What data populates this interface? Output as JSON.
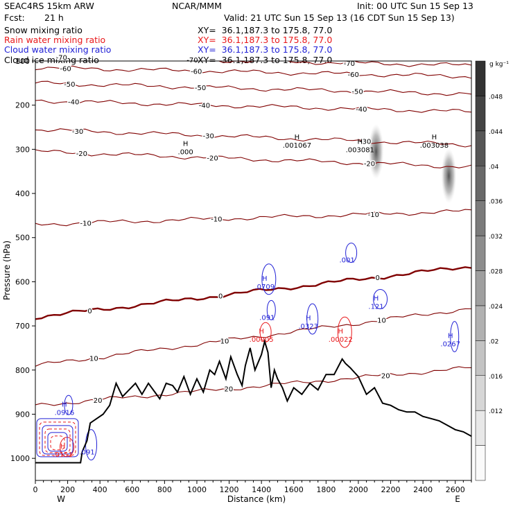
{
  "header": {
    "model": "SEAC4RS 15km ARW",
    "org": "NCAR/MMM",
    "init": "Init: 00 UTC Sun 15 Sep 13",
    "fcst_label": "Fcst:",
    "fcst_value": "21 h",
    "valid": "Valid: 21 UTC Sun 15 Sep 13 (16 CDT Sun 15 Sep 13)"
  },
  "fields": [
    {
      "name": "Snow mixing ratio",
      "xy": "XY=  36.1,187.3 to 175.8, 77.0",
      "color": "#000000"
    },
    {
      "name": "Rain water mixing ratio",
      "xy": "XY=  36.1,187.3 to 175.8, 77.0",
      "color": "#e8171a"
    },
    {
      "name": "Cloud water mixing ratio",
      "xy": "XY=  36.1,187.3 to 175.8, 77.0",
      "color": "#2121d6"
    },
    {
      "name": "Cloud ice mixing ratio",
      "xy": "XY=  36.1,187.3 to 175.8, 77.0",
      "color": "#000000"
    }
  ],
  "chart_data": {
    "type": "cross-section",
    "xlabel": "Distance (km)",
    "ylabel": "Pressure (hPa)",
    "xlim": [
      0,
      2700
    ],
    "ylim": [
      1050,
      100
    ],
    "x_ticks": [
      0,
      200,
      400,
      600,
      800,
      1000,
      1200,
      1400,
      1600,
      1800,
      2000,
      2200,
      2400,
      2600
    ],
    "y_ticks": [
      100,
      200,
      300,
      400,
      500,
      600,
      700,
      800,
      900,
      1000
    ],
    "x_end_labels": {
      "left": "W",
      "right": "E"
    },
    "colorbar": {
      "unit": "g kg⁻¹",
      "ticks": [
        ".012",
        ".016",
        ".02",
        ".024",
        ".028",
        ".032",
        ".036",
        ".04",
        ".044",
        ".048"
      ],
      "tick_values": [
        0.012,
        0.016,
        0.02,
        0.024,
        0.028,
        0.032,
        0.036,
        0.04,
        0.044,
        0.048
      ]
    },
    "temperature_contours": [
      {
        "level": -70,
        "p_left": 90,
        "p_right": 110,
        "label": "-70"
      },
      {
        "level": -60,
        "p_left": 115,
        "p_right": 135,
        "label": "-60"
      },
      {
        "level": -50,
        "p_left": 150,
        "p_right": 175,
        "label": "-50"
      },
      {
        "level": -40,
        "p_left": 190,
        "p_right": 215,
        "label": "-40"
      },
      {
        "level": -30,
        "p_left": 255,
        "p_right": 290,
        "label": "-30"
      },
      {
        "level": -20,
        "p_left": 305,
        "p_right": 340,
        "label": "-20"
      },
      {
        "level": -10,
        "p_left": 470,
        "p_right": 440,
        "label": "-10"
      },
      {
        "level": 0,
        "p_left": 680,
        "p_right": 565,
        "label": "0"
      },
      {
        "level": 10,
        "p_left": 790,
        "p_right": 660,
        "label": "10"
      },
      {
        "level": 20,
        "p_left": 880,
        "p_right": 795,
        "label": "20"
      }
    ],
    "terrain": {
      "x": [
        0,
        280,
        290,
        320,
        340,
        380,
        420,
        460,
        500,
        540,
        580,
        620,
        660,
        700,
        740,
        770,
        810,
        850,
        880,
        920,
        960,
        1000,
        1040,
        1080,
        1110,
        1140,
        1180,
        1210,
        1250,
        1280,
        1300,
        1330,
        1360,
        1400,
        1420,
        1440,
        1460,
        1480,
        1500,
        1530,
        1560,
        1600,
        1650,
        1700,
        1750,
        1800,
        1850,
        1900,
        1920,
        1950,
        2000,
        2050,
        2100,
        2150,
        2200,
        2250,
        2300,
        2350,
        2400,
        2450,
        2500,
        2550,
        2600,
        2650,
        2700
      ],
      "p": [
        1010,
        1010,
        985,
        960,
        920,
        910,
        900,
        880,
        830,
        860,
        845,
        830,
        855,
        830,
        850,
        865,
        830,
        835,
        850,
        815,
        855,
        820,
        850,
        800,
        810,
        780,
        820,
        770,
        810,
        835,
        790,
        750,
        800,
        765,
        735,
        760,
        840,
        800,
        820,
        840,
        870,
        840,
        855,
        830,
        845,
        810,
        810,
        775,
        785,
        795,
        815,
        855,
        840,
        875,
        880,
        890,
        895,
        895,
        905,
        910,
        915,
        925,
        935,
        940,
        950
      ]
    },
    "maxima": [
      {
        "marker": "H",
        "value": ".000",
        "x": 930,
        "p": 305,
        "color": "#000000"
      },
      {
        "marker": "H",
        "value": ".001067",
        "x": 1620,
        "p": 290,
        "color": "#000000"
      },
      {
        "marker": "H",
        "value": ".003081",
        "x": 2010,
        "p": 300,
        "color": "#000000"
      },
      {
        "marker": "H",
        "value": ".003038",
        "x": 2470,
        "p": 290,
        "color": "#000000"
      },
      {
        "marker": "",
        "value": ".001",
        "x": 1930,
        "p": 550,
        "color": "#2121d6"
      },
      {
        "marker": "H",
        "value": ".0709",
        "x": 1420,
        "p": 610,
        "color": "#2121d6"
      },
      {
        "marker": "",
        "value": ".091",
        "x": 1435,
        "p": 680,
        "color": "#2121d6"
      },
      {
        "marker": "H",
        "value": ".0323",
        "x": 1690,
        "p": 700,
        "color": "#2121d6"
      },
      {
        "marker": "H",
        "value": ".121",
        "x": 2110,
        "p": 655,
        "color": "#2121d6"
      },
      {
        "marker": "H",
        "value": ".0267",
        "x": 2570,
        "p": 740,
        "color": "#2121d6"
      },
      {
        "marker": "H",
        "value": ".00005",
        "x": 1400,
        "p": 730,
        "color": "#e8171a"
      },
      {
        "marker": "H",
        "value": ".00022",
        "x": 1890,
        "p": 730,
        "color": "#e8171a"
      },
      {
        "marker": "H",
        "value": ".0916",
        "x": 180,
        "p": 895,
        "color": "#2121d6"
      },
      {
        "marker": "",
        "value": ".091",
        "x": 320,
        "p": 985,
        "color": "#2121d6"
      },
      {
        "marker": "H",
        "value": ".0151",
        "x": 170,
        "p": 990,
        "color": "#e8171a"
      }
    ],
    "shading": [
      {
        "x": 2110,
        "p": 305,
        "value": 0.03
      },
      {
        "x": 2560,
        "p": 360,
        "value": 0.036
      }
    ],
    "colors": {
      "temperature": "#800000",
      "zero_isotherm": "#800000",
      "terrain": "#000000",
      "cloud_water": "#2121d6",
      "rain_water": "#e8171a"
    }
  }
}
